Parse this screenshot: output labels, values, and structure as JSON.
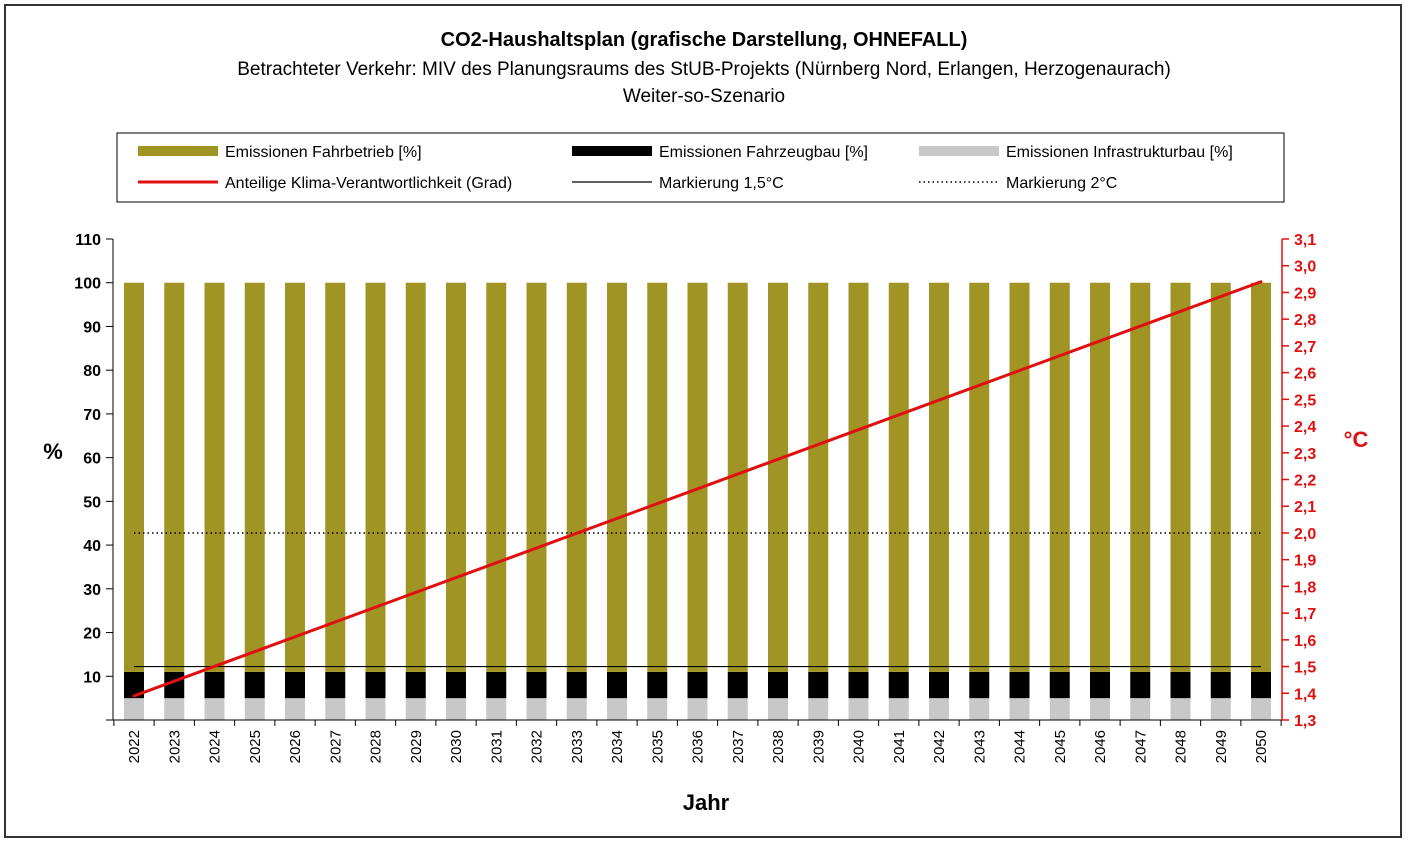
{
  "chart_data": {
    "type": "bar",
    "stacked": true,
    "title": "CO2-Haushaltsplan (grafische Darstellung, OHNEFALL)",
    "subtitle_lines": [
      "Betrachteter Verkehr: MIV des Planungsraums des StUB-Projekts (Nürnberg Nord, Erlangen, Herzogenaurach)",
      "Weiter-so-Szenario"
    ],
    "xlabel": "Jahr",
    "ylabel": "%",
    "y2label": "°C",
    "ylim": [
      0,
      110
    ],
    "yticks": [
      "10",
      "20",
      "30",
      "40",
      "50",
      "60",
      "70",
      "80",
      "90",
      "100",
      "110"
    ],
    "y2lim": [
      1.3,
      3.1
    ],
    "y2ticks": [
      "1,3",
      "1,4",
      "1,5",
      "1,6",
      "1,7",
      "1,8",
      "1,9",
      "2,0",
      "2,1",
      "2,2",
      "2,3",
      "2,4",
      "2,5",
      "2,6",
      "2,7",
      "2,8",
      "2,9",
      "3,0",
      "3,1"
    ],
    "categories": [
      "2022",
      "2023",
      "2024",
      "2025",
      "2026",
      "2027",
      "2028",
      "2029",
      "2030",
      "2031",
      "2032",
      "2033",
      "2034",
      "2035",
      "2036",
      "2037",
      "2038",
      "2039",
      "2040",
      "2041",
      "2042",
      "2043",
      "2044",
      "2045",
      "2046",
      "2047",
      "2048",
      "2049",
      "2050"
    ],
    "series": [
      {
        "name": "Emissionen Infrastrukturbau [%]",
        "color": "#c8c8c8",
        "values": [
          5,
          5,
          5,
          5,
          5,
          5,
          5,
          5,
          5,
          5,
          5,
          5,
          5,
          5,
          5,
          5,
          5,
          5,
          5,
          5,
          5,
          5,
          5,
          5,
          5,
          5,
          5,
          5,
          5
        ]
      },
      {
        "name": "Emissionen Fahrzeugbau [%]",
        "color": "#000000",
        "values": [
          6,
          6,
          6,
          6,
          6,
          6,
          6,
          6,
          6,
          6,
          6,
          6,
          6,
          6,
          6,
          6,
          6,
          6,
          6,
          6,
          6,
          6,
          6,
          6,
          6,
          6,
          6,
          6,
          6
        ]
      },
      {
        "name": "Emissionen Fahrbetrieb [%]",
        "color": "#a09424",
        "values": [
          89,
          89,
          89,
          89,
          89,
          89,
          89,
          89,
          89,
          89,
          89,
          89,
          89,
          89,
          89,
          89,
          89,
          89,
          89,
          89,
          89,
          89,
          89,
          89,
          89,
          89,
          89,
          89,
          89
        ]
      }
    ],
    "line_series": {
      "name": "Anteilige Klima-Verantwortlichkeit (Grad)",
      "color": "#e01010",
      "axis": "right",
      "start": 1.39,
      "end": 2.94
    },
    "reference_lines": [
      {
        "name": "Markierung 1,5°C",
        "value": 1.5,
        "style": "solid",
        "color": "#000000"
      },
      {
        "name": "Markierung 2°C",
        "value": 2.0,
        "style": "dotted",
        "color": "#000000"
      }
    ],
    "legend": {
      "placement": "top",
      "entries": [
        {
          "label": "Emissionen Fahrbetrieb [%]",
          "kind": "bar",
          "color": "#a09424"
        },
        {
          "label": "Emissionen Fahrzeugbau [%]",
          "kind": "bar",
          "color": "#000000"
        },
        {
          "label": "Emissionen Infrastrukturbau [%]",
          "kind": "bar",
          "color": "#c8c8c8"
        },
        {
          "label": "Anteilige Klima-Verantwortlichkeit (Grad)",
          "kind": "line",
          "color": "#e01010"
        },
        {
          "label": "Markierung 1,5°C",
          "kind": "solid",
          "color": "#000000"
        },
        {
          "label": "Markierung 2°C",
          "kind": "dotted",
          "color": "#000000"
        }
      ]
    }
  }
}
